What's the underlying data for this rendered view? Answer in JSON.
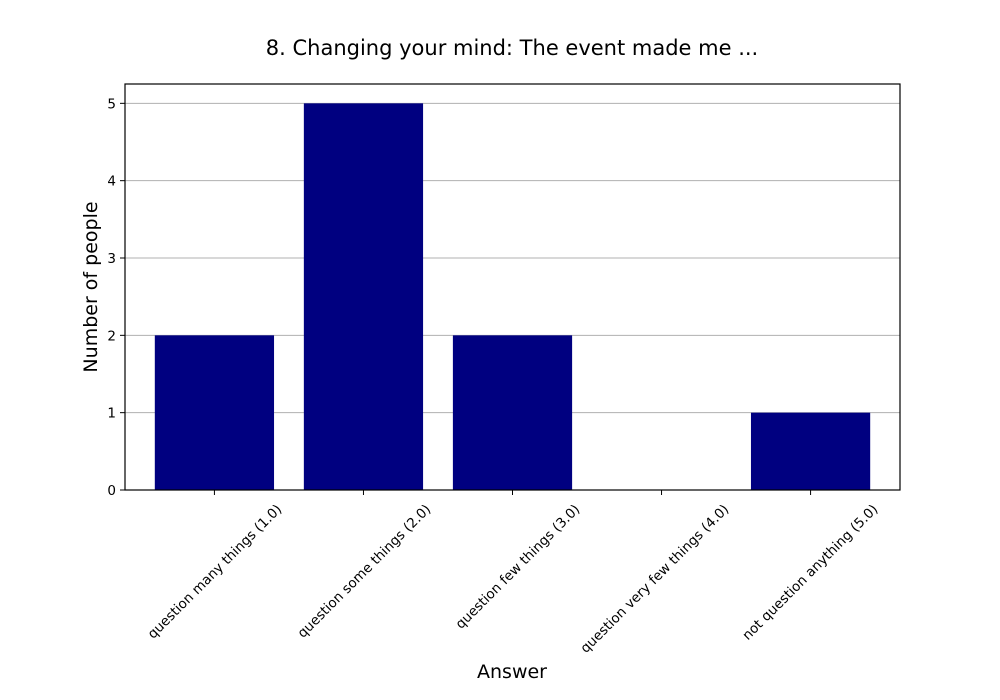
{
  "chart_data": {
    "type": "bar",
    "title": "8. Changing your mind: The event made me ...",
    "xlabel": "Answer",
    "ylabel": "Number of people",
    "categories": [
      "question many things (1.0)",
      "question some things (2.0)",
      "question few things (3.0)",
      "question very few things (4.0)",
      "not question anything (5.0)"
    ],
    "values": [
      2,
      5,
      2,
      0,
      1
    ],
    "ylim": [
      0,
      5.25
    ],
    "yticks": [
      0,
      1,
      2,
      3,
      4,
      5
    ],
    "grid": "y",
    "legend": "none",
    "colors": {
      "bar": "#000080",
      "grid": "#b0b0b0",
      "axes": "#000000",
      "background": "#ffffff"
    }
  }
}
